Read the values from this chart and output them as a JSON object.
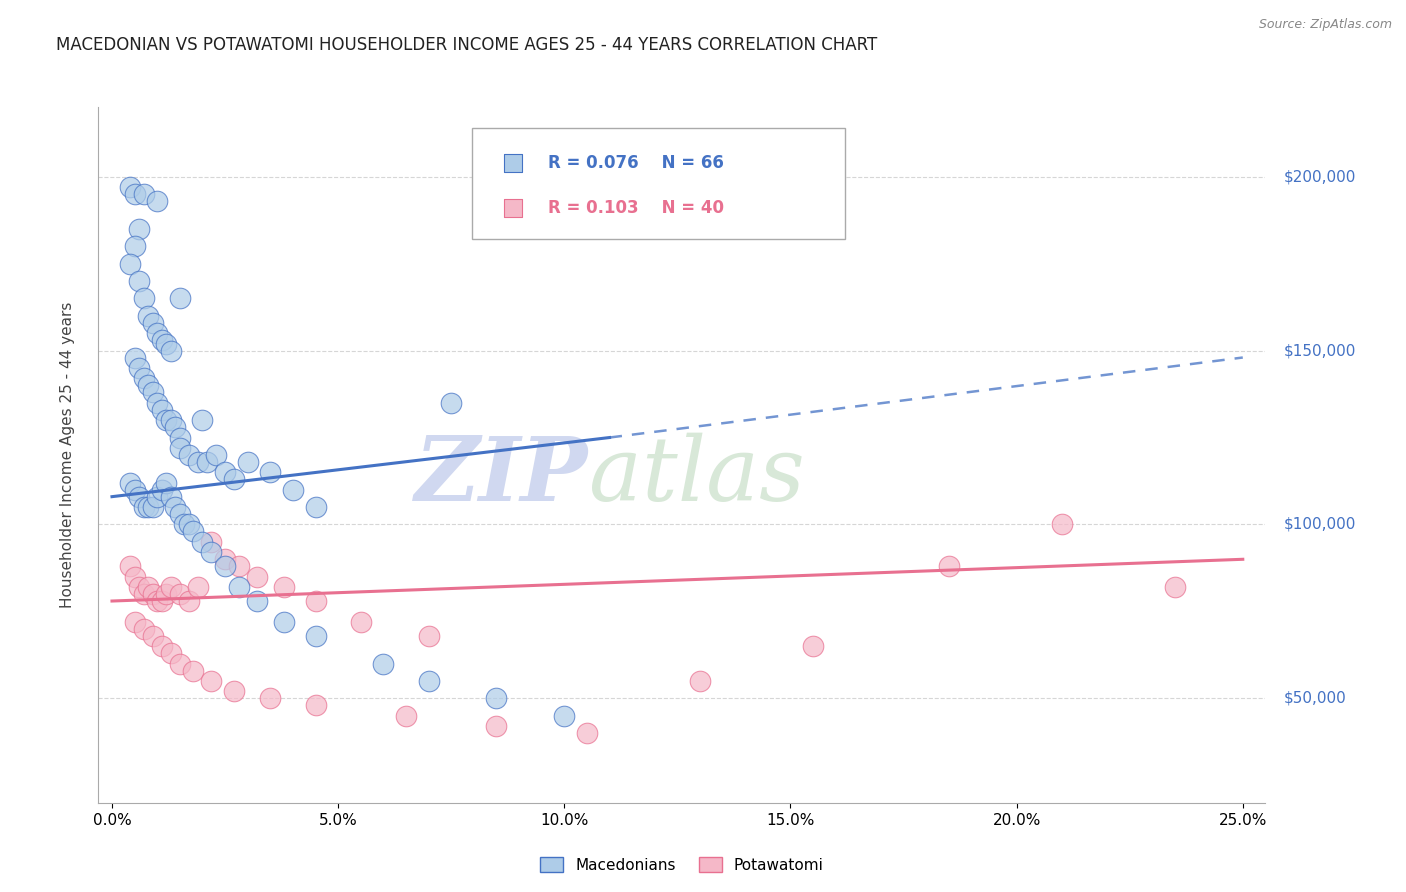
{
  "title": "MACEDONIAN VS POTAWATOMI HOUSEHOLDER INCOME AGES 25 - 44 YEARS CORRELATION CHART",
  "source": "Source: ZipAtlas.com",
  "xlabel_ticks": [
    "0.0%",
    "5.0%",
    "10.0%",
    "15.0%",
    "20.0%",
    "25.0%"
  ],
  "xlabel_vals": [
    0.0,
    5.0,
    10.0,
    15.0,
    20.0,
    25.0
  ],
  "ylabel_ticks": [
    "$50,000",
    "$100,000",
    "$150,000",
    "$200,000"
  ],
  "ylabel_vals": [
    50000,
    100000,
    150000,
    200000
  ],
  "ylabel_label": "Householder Income Ages 25 - 44 years",
  "xlim": [
    -0.3,
    25.5
  ],
  "ylim": [
    20000,
    220000
  ],
  "blue_R": "0.076",
  "blue_N": "66",
  "pink_R": "0.103",
  "pink_N": "40",
  "blue_color": "#aecce8",
  "pink_color": "#f5b8c8",
  "blue_line_color": "#4472c4",
  "pink_line_color": "#e87090",
  "legend_blue": "Macedonians",
  "legend_pink": "Potawatomi",
  "blue_scatter_x": [
    0.4,
    0.5,
    0.7,
    1.0,
    0.6,
    0.5,
    0.4,
    0.6,
    0.7,
    0.8,
    0.9,
    1.0,
    1.1,
    1.2,
    1.3,
    0.5,
    0.6,
    0.7,
    0.8,
    0.9,
    1.0,
    1.1,
    1.2,
    1.3,
    1.4,
    1.5,
    1.5,
    1.7,
    1.9,
    2.1,
    2.3,
    2.5,
    2.7,
    3.0,
    3.5,
    4.0,
    4.5,
    0.4,
    0.5,
    0.6,
    0.7,
    0.8,
    0.9,
    1.0,
    1.1,
    1.2,
    1.3,
    1.4,
    1.5,
    1.6,
    1.7,
    1.8,
    2.0,
    2.2,
    2.5,
    2.8,
    3.2,
    3.8,
    4.5,
    6.0,
    7.0,
    8.5,
    10.0,
    1.5,
    2.0,
    7.5
  ],
  "blue_scatter_y": [
    197000,
    195000,
    195000,
    193000,
    185000,
    180000,
    175000,
    170000,
    165000,
    160000,
    158000,
    155000,
    153000,
    152000,
    150000,
    148000,
    145000,
    142000,
    140000,
    138000,
    135000,
    133000,
    130000,
    130000,
    128000,
    125000,
    122000,
    120000,
    118000,
    118000,
    120000,
    115000,
    113000,
    118000,
    115000,
    110000,
    105000,
    112000,
    110000,
    108000,
    105000,
    105000,
    105000,
    108000,
    110000,
    112000,
    108000,
    105000,
    103000,
    100000,
    100000,
    98000,
    95000,
    92000,
    88000,
    82000,
    78000,
    72000,
    68000,
    60000,
    55000,
    50000,
    45000,
    165000,
    130000,
    135000
  ],
  "pink_scatter_x": [
    0.4,
    0.5,
    0.6,
    0.7,
    0.8,
    0.9,
    1.0,
    1.1,
    1.2,
    1.3,
    1.5,
    1.7,
    1.9,
    2.2,
    2.5,
    2.8,
    3.2,
    3.8,
    4.5,
    5.5,
    7.0,
    0.5,
    0.7,
    0.9,
    1.1,
    1.3,
    1.5,
    1.8,
    2.2,
    2.7,
    3.5,
    4.5,
    6.5,
    8.5,
    10.5,
    13.0,
    15.5,
    18.5,
    21.0,
    23.5
  ],
  "pink_scatter_y": [
    88000,
    85000,
    82000,
    80000,
    82000,
    80000,
    78000,
    78000,
    80000,
    82000,
    80000,
    78000,
    82000,
    95000,
    90000,
    88000,
    85000,
    82000,
    78000,
    72000,
    68000,
    72000,
    70000,
    68000,
    65000,
    63000,
    60000,
    58000,
    55000,
    52000,
    50000,
    48000,
    45000,
    42000,
    40000,
    55000,
    65000,
    88000,
    100000,
    82000
  ],
  "blue_trend_x0": 0.0,
  "blue_trend_y0": 108000,
  "blue_trend_x1": 11.0,
  "blue_trend_y1": 125000,
  "blue_dashed_x0": 11.0,
  "blue_dashed_y0": 125000,
  "blue_dashed_x1": 25.0,
  "blue_dashed_y1": 148000,
  "pink_trend_x0": 0.0,
  "pink_trend_y0": 78000,
  "pink_trend_x1": 25.0,
  "pink_trend_y1": 90000,
  "watermark_zip": "ZIP",
  "watermark_atlas": "atlas",
  "watermark_color_zip": "#d0d8f0",
  "watermark_color_atlas": "#d8e8d8",
  "background_color": "#ffffff",
  "grid_color": "#cccccc",
  "right_axis_color": "#4472c4",
  "title_color": "#222222",
  "source_color": "#888888"
}
